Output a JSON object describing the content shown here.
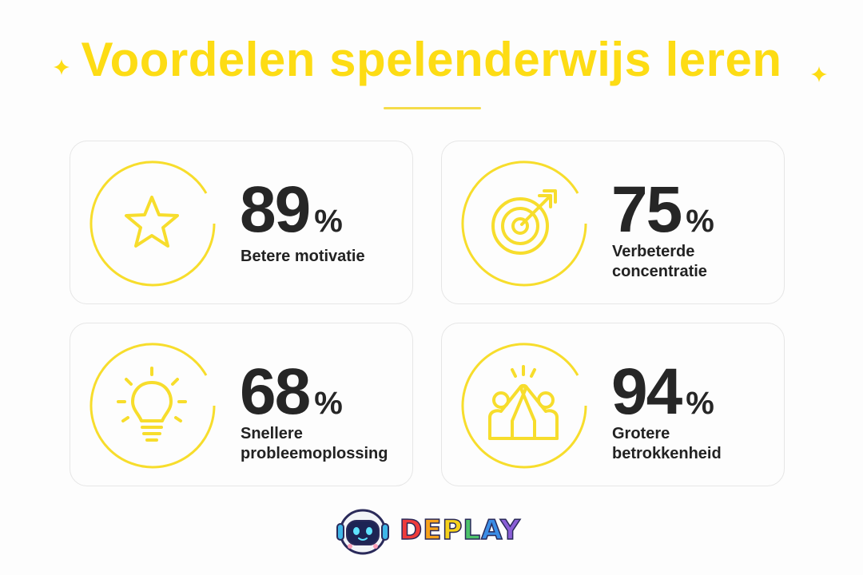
{
  "title": "Voordelen spelenderwijs leren",
  "accent_color": "#fddc14",
  "cards": [
    {
      "value": "89",
      "unit": "%",
      "label": "Betere motivatie",
      "icon": "star-icon"
    },
    {
      "value": "75",
      "unit": "%",
      "label": "Verbeterde concentratie",
      "icon": "target-icon"
    },
    {
      "value": "68",
      "unit": "%",
      "label": "Snellere probleemoplossing",
      "icon": "lightbulb-icon"
    },
    {
      "value": "94",
      "unit": "%",
      "label": "Grotere betrokkenheid",
      "icon": "high-five-icon"
    }
  ],
  "brand": {
    "letters": [
      "D",
      "E",
      "P",
      "L",
      "A",
      "Y"
    ],
    "mascot": "robot-mascot-icon"
  }
}
